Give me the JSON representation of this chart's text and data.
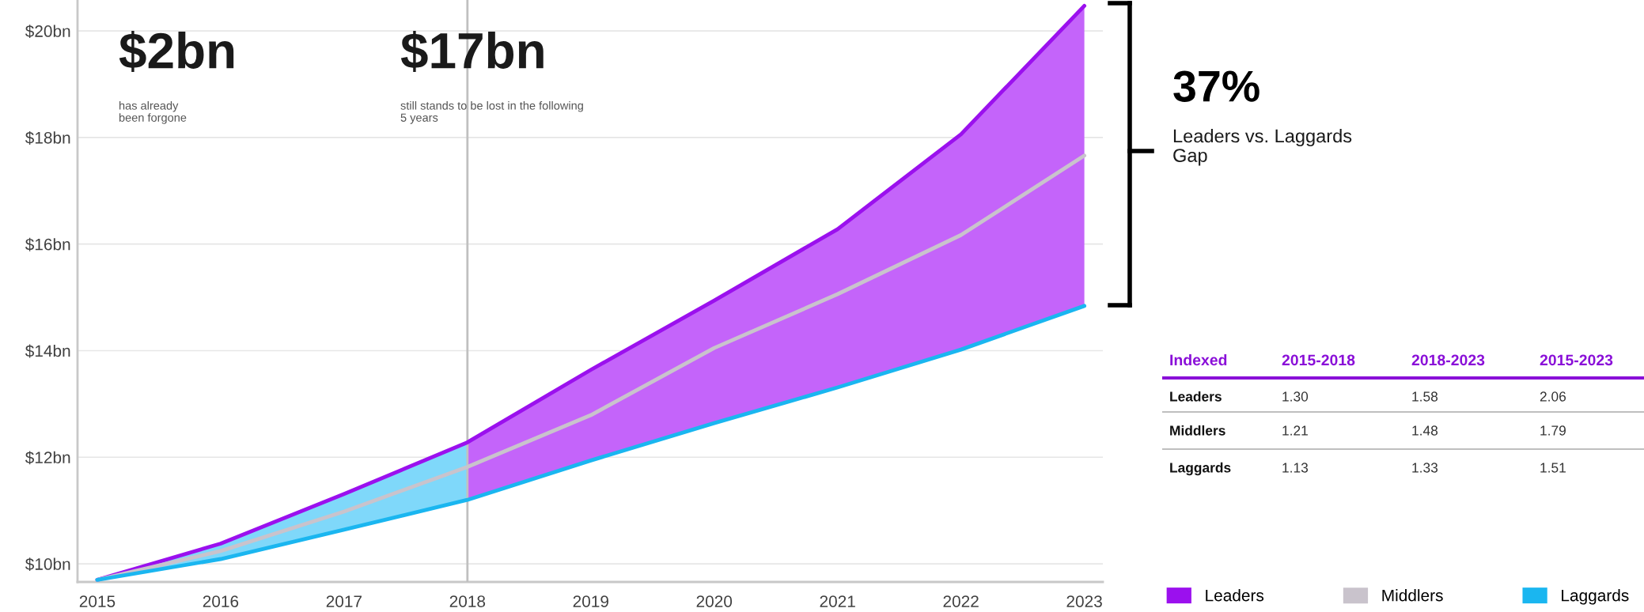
{
  "chart_data": [
    {
      "type": "line",
      "x": [
        2015,
        2016,
        2017,
        2018,
        2019,
        2020,
        2021,
        2022,
        2023
      ],
      "series": [
        {
          "name": "Leaders",
          "color": "#9b10ee",
          "values": [
            9.7,
            10.38,
            11.31,
            12.28,
            13.64,
            14.94,
            16.28,
            18.06,
            20.47
          ]
        },
        {
          "name": "Middlers",
          "color": "#c9c3cc",
          "values": [
            9.7,
            10.24,
            10.98,
            11.82,
            12.79,
            14.05,
            15.06,
            16.17,
            17.66
          ]
        },
        {
          "name": "Laggards",
          "color": "#1ab6f0",
          "values": [
            9.7,
            10.09,
            10.64,
            11.2,
            11.94,
            12.64,
            13.31,
            14.02,
            14.84
          ]
        },
        {
          "type": "area",
          "color": "#7fd8fa",
          "x": [
            2015,
            2016,
            2017,
            2018
          ],
          "values": [
            9.7,
            10.38,
            11.31,
            12.28
          ]
        },
        {
          "type": "area",
          "color": "#c464fa",
          "x": [
            2018,
            2019,
            2020,
            2021,
            2022,
            2023
          ],
          "values": [
            12.28,
            13.64,
            14.94,
            16.28,
            18.06,
            20.47
          ]
        }
      ],
      "xlim": [
        2014.84,
        2023.15
      ],
      "xticks": [
        2015,
        2016,
        2017,
        2018,
        2019,
        2020,
        2021,
        2022,
        2023
      ],
      "ylim": [
        9.66,
        20.58
      ],
      "yticks": [
        {
          "value": 10,
          "label": "$10bn"
        },
        {
          "value": 12,
          "label": "$12bn"
        },
        {
          "value": 14,
          "label": "$14bn"
        },
        {
          "value": 16,
          "label": "$16bn"
        },
        {
          "value": 18,
          "label": "$18bn"
        },
        {
          "value": 20,
          "label": "$20bn"
        }
      ],
      "grid": "y",
      "legend": "bottom right",
      "marker": "none",
      "line_style": "solid",
      "ref_lines": [
        {
          "axis": "x",
          "value": 2018,
          "color": "#c0c0c0"
        }
      ],
      "annotations": [
        "$2bn",
        "has already\nbeen forgone",
        "$17bn",
        "still stands to be lost in the following\n5 years",
        "37%",
        "Leaders vs. Laggards\nGap"
      ]
    },
    {
      "type": "other",
      "annotations": [
        "Indexed",
        "2015-2018",
        "2018-2023",
        "2015-2023",
        "Leaders",
        "1.30",
        "1.58",
        "2.06",
        "Middlers",
        "1.21",
        "1.48",
        "1.79",
        "Laggards",
        "1.13",
        "1.33",
        "1.51"
      ]
    }
  ]
}
